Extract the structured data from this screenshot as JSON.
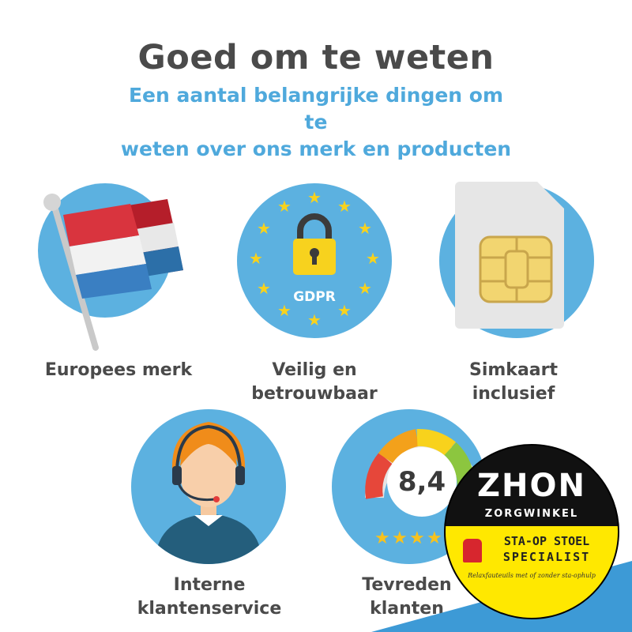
{
  "header": {
    "title": "Goed om te weten",
    "subtitle_line1": "Een aantal belangrijke dingen om te",
    "subtitle_line2": "weten over ons merk en producten"
  },
  "features": [
    {
      "icon": "dutch-flag-icon",
      "label": [
        "Europees merk"
      ]
    },
    {
      "icon": "gdpr-lock-icon",
      "badge": "GDPR",
      "label": [
        "Veilig en",
        "betrouwbaar"
      ]
    },
    {
      "icon": "sim-card-icon",
      "label": [
        "Simkaart",
        "inclusief"
      ]
    },
    {
      "icon": "headset-agent-icon",
      "label": [
        "Interne",
        "klantenservice"
      ]
    },
    {
      "icon": "rating-gauge-icon",
      "score": "8,4",
      "label": [
        "Tevreden",
        "klanten"
      ]
    }
  ],
  "badge": {
    "brand": "ZHON",
    "sub": "ZORGWINKEL",
    "line1": "STA-OP STOEL",
    "line2": "SPECIALIST",
    "tagline": "Relaxfauteuils met of zonder sta-ophulp"
  },
  "colors": {
    "circle": "#5cb1e0",
    "title": "#4a4a4a",
    "subtitle": "#4fa9dc",
    "badge_black": "#111111",
    "badge_yellow": "#ffe800"
  }
}
